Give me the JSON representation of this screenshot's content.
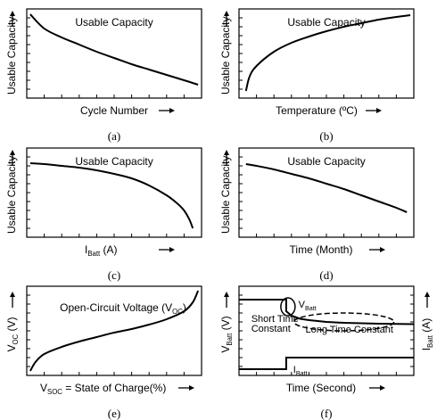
{
  "chart_data": [
    {
      "id": "a",
      "type": "line",
      "panel_label": "(a)",
      "title": "Usable Capacity",
      "xlabel": "Cycle Number",
      "ylabel": "Usable Capacity",
      "xlim": [
        0,
        1
      ],
      "ylim": [
        0,
        1
      ],
      "series": [
        {
          "x": [
            0.02,
            0.1,
            0.2,
            0.3,
            0.4,
            0.5,
            0.6,
            0.7,
            0.8,
            0.9,
            0.98
          ],
          "y": [
            0.94,
            0.78,
            0.68,
            0.6,
            0.52,
            0.45,
            0.38,
            0.32,
            0.26,
            0.2,
            0.15
          ]
        }
      ]
    },
    {
      "id": "b",
      "type": "line",
      "panel_label": "(b)",
      "title": "Usable Capacity",
      "xlabel": "Temperature (ºC)",
      "ylabel": "Usable Capacity",
      "xlim": [
        0,
        1
      ],
      "ylim": [
        0,
        1
      ],
      "series": [
        {
          "x": [
            0.04,
            0.06,
            0.1,
            0.2,
            0.3,
            0.4,
            0.5,
            0.6,
            0.7,
            0.8,
            0.9,
            0.98
          ],
          "y": [
            0.08,
            0.24,
            0.36,
            0.52,
            0.62,
            0.69,
            0.75,
            0.8,
            0.84,
            0.88,
            0.91,
            0.93
          ]
        }
      ]
    },
    {
      "id": "c",
      "type": "line",
      "panel_label": "(c)",
      "title": "Usable Capacity",
      "xlabel": "I",
      "xlabel_sub": "Batt",
      "xlabel_suffix": " (A)",
      "ylabel": "Usable Capacity",
      "xlim": [
        0,
        1
      ],
      "ylim": [
        0,
        1
      ],
      "series": [
        {
          "x": [
            0.02,
            0.1,
            0.2,
            0.3,
            0.4,
            0.5,
            0.6,
            0.7,
            0.8,
            0.86,
            0.9,
            0.93,
            0.95
          ],
          "y": [
            0.83,
            0.82,
            0.8,
            0.78,
            0.75,
            0.71,
            0.66,
            0.58,
            0.47,
            0.38,
            0.3,
            0.2,
            0.1
          ]
        }
      ]
    },
    {
      "id": "d",
      "type": "line",
      "panel_label": "(d)",
      "title": "Usable Capacity",
      "xlabel": "Time (Month)",
      "ylabel": "Usable Capacity",
      "xlim": [
        0,
        1
      ],
      "ylim": [
        0,
        1
      ],
      "series": [
        {
          "x": [
            0.04,
            0.1,
            0.2,
            0.3,
            0.4,
            0.5,
            0.6,
            0.7,
            0.8,
            0.9,
            0.96
          ],
          "y": [
            0.82,
            0.8,
            0.76,
            0.71,
            0.66,
            0.6,
            0.54,
            0.47,
            0.4,
            0.33,
            0.28
          ]
        }
      ]
    },
    {
      "id": "e",
      "type": "line",
      "panel_label": "(e)",
      "title": "Open-Circuit Voltage (V",
      "title_sub": "OC",
      "title_suffix": ")",
      "xlabel": "V",
      "xlabel_sub": "SOC",
      "xlabel_suffix": " = State of Charge(%)",
      "ylabel": "V",
      "ylabel_sub": "OC",
      "ylabel_suffix": " (V)",
      "xlim": [
        0,
        1
      ],
      "ylim": [
        0,
        1
      ],
      "series": [
        {
          "x": [
            0.02,
            0.05,
            0.1,
            0.2,
            0.3,
            0.4,
            0.5,
            0.6,
            0.7,
            0.8,
            0.9,
            0.95,
            0.98
          ],
          "y": [
            0.05,
            0.15,
            0.24,
            0.32,
            0.38,
            0.43,
            0.48,
            0.52,
            0.57,
            0.63,
            0.72,
            0.82,
            0.95
          ]
        }
      ]
    },
    {
      "id": "f",
      "type": "line",
      "panel_label": "(f)",
      "xlabel": "Time (Second)",
      "ylabel": "V",
      "ylabel_sub": "Batt",
      "ylabel_suffix": " (V)",
      "y2label": "I",
      "y2label_sub": "Batt",
      "y2label_suffix": " (A)",
      "xlim": [
        0,
        1
      ],
      "ylim": [
        0,
        1
      ],
      "annotations": {
        "vbatt": "V",
        "vbatt_sub": "Batt",
        "ibatt": "I",
        "ibatt_sub": "Batt",
        "short1": "Short Time",
        "short2": "Constant",
        "long": "Long Time Constant"
      },
      "series": [
        {
          "name": "V",
          "x": [
            0.0,
            0.27,
            0.27,
            0.3,
            0.35,
            0.4,
            0.5,
            0.6,
            0.7,
            0.8,
            0.9,
            1.0
          ],
          "y": [
            0.85,
            0.85,
            0.72,
            0.67,
            0.635,
            0.62,
            0.6,
            0.59,
            0.585,
            0.58,
            0.578,
            0.575
          ]
        },
        {
          "name": "I",
          "x": [
            0.0,
            0.27,
            0.27,
            1.0
          ],
          "y": [
            0.07,
            0.07,
            0.2,
            0.2
          ]
        }
      ]
    }
  ]
}
